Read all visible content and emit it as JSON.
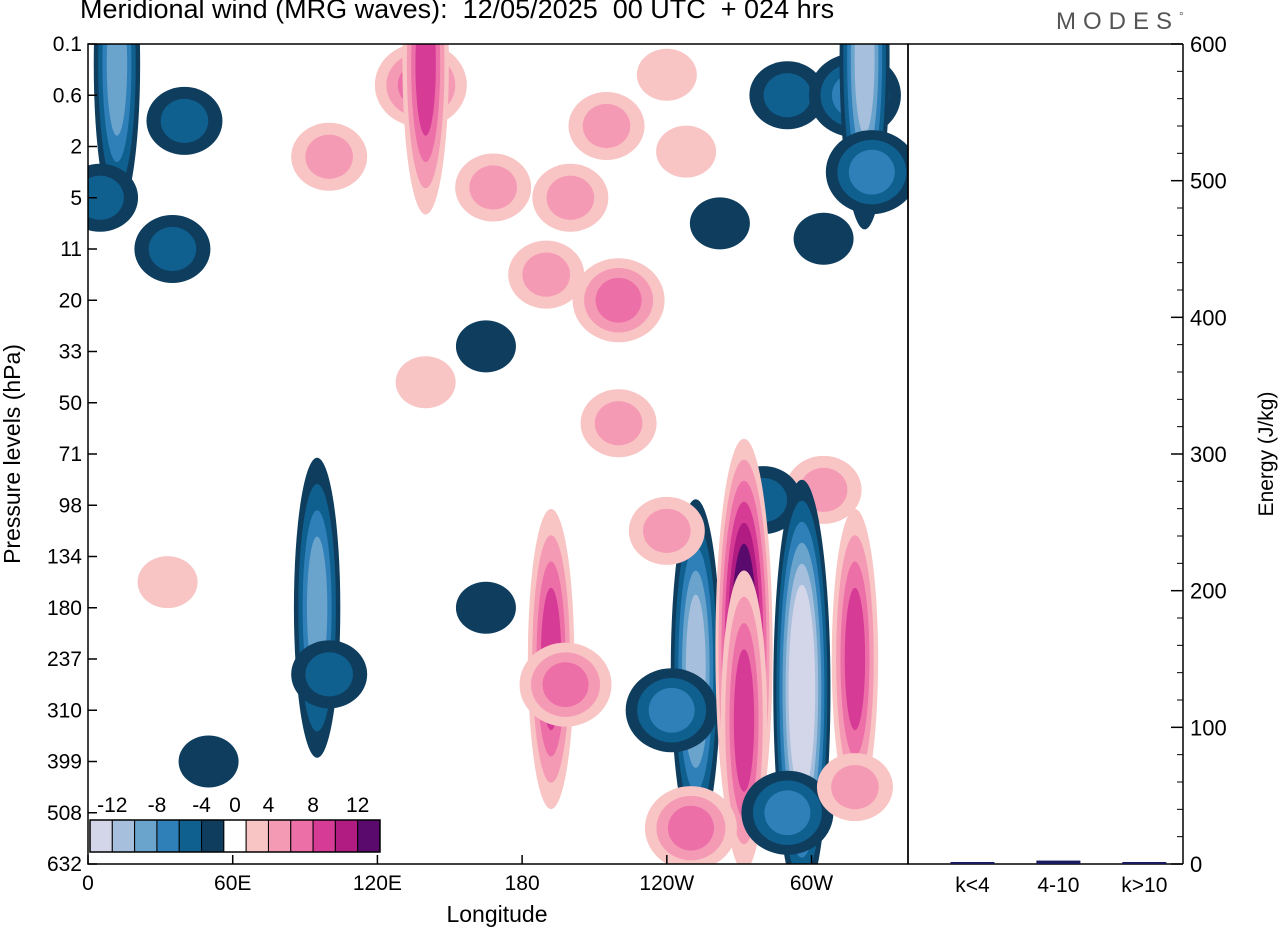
{
  "header": {
    "title": "Meridional wind (MRG waves):  12/05/2025  00 UTC  + 024 hrs",
    "logo": "MODES",
    "logo_mark": "°"
  },
  "colors": {
    "neg": [
      "#0e3d5e",
      "#0f5f8f",
      "#2f7fb8",
      "#6aa3cc",
      "#a5bfdc",
      "#d3d6e8"
    ],
    "pos": [
      "#f8c4c4",
      "#f59ab5",
      "#ec6fa8",
      "#d63b96",
      "#b01c82",
      "#5a0a6c"
    ],
    "bar": "#1a1a5e"
  },
  "chart_data": [
    {
      "type": "heatmap",
      "title": "Meridional wind (MRG waves):  12/05/2025  00 UTC  + 024 hrs",
      "xlabel": "Longitude",
      "ylabel": "Pressure levels (hPa)",
      "x_ticks": [
        "0",
        "60E",
        "120E",
        "180",
        "120W",
        "60W"
      ],
      "x_tick_values": [
        0,
        60,
        120,
        180,
        240,
        300
      ],
      "xlim": [
        0,
        340
      ],
      "y_ticks": [
        "0.1",
        "0.6",
        "2",
        "5",
        "11",
        "20",
        "33",
        "50",
        "71",
        "98",
        "134",
        "180",
        "237",
        "310",
        "399",
        "508",
        "632"
      ],
      "colorbar": {
        "labels": [
          "-12",
          "-8",
          "-4",
          "0",
          "4",
          "8",
          "12"
        ],
        "levels": [
          -14,
          -12,
          -10,
          -8,
          -6,
          -4,
          -2,
          2,
          4,
          6,
          8,
          10,
          12,
          14
        ]
      },
      "features": [
        {
          "lon": 12,
          "lev": 0.4,
          "value": -8
        },
        {
          "lon": 35,
          "lev": 4,
          "value": -4
        },
        {
          "lon": 40,
          "lev": 1.5,
          "value": -4
        },
        {
          "lon": 5,
          "lev": 3,
          "value": -4
        },
        {
          "lon": 100,
          "lev": 2.2,
          "value": 4
        },
        {
          "lon": 138,
          "lev": 0.8,
          "value": 6
        },
        {
          "lon": 140,
          "lev": 0.4,
          "value": 8
        },
        {
          "lon": 168,
          "lev": 2.8,
          "value": 4
        },
        {
          "lon": 200,
          "lev": 3,
          "value": 4
        },
        {
          "lon": 215,
          "lev": 1.6,
          "value": 4
        },
        {
          "lon": 190,
          "lev": 4.5,
          "value": 4
        },
        {
          "lon": 220,
          "lev": 5,
          "value": 6
        },
        {
          "lon": 220,
          "lev": 7.4,
          "value": 4
        },
        {
          "lon": 165,
          "lev": 5.9,
          "value": -2
        },
        {
          "lon": 262,
          "lev": 3.5,
          "value": -2
        },
        {
          "lon": 305,
          "lev": 3.8,
          "value": -2
        },
        {
          "lon": 290,
          "lev": 1.0,
          "value": -4
        },
        {
          "lon": 318,
          "lev": 1.0,
          "value": -6
        },
        {
          "lon": 322,
          "lev": 0.3,
          "value": -10
        },
        {
          "lon": 325,
          "lev": 2.5,
          "value": -6
        },
        {
          "lon": 248,
          "lev": 2.1,
          "value": 2
        },
        {
          "lon": 240,
          "lev": 0.6,
          "value": 2
        },
        {
          "lon": 140,
          "lev": 6.6,
          "value": 2
        },
        {
          "lon": 305,
          "lev": 8.7,
          "value": 4
        },
        {
          "lon": 280,
          "lev": 8.9,
          "value": -4
        },
        {
          "lon": 95,
          "lev": 11,
          "value": -8
        },
        {
          "lon": 100,
          "lev": 12.3,
          "value": -4
        },
        {
          "lon": 33,
          "lev": 10.5,
          "value": 2
        },
        {
          "lon": 192,
          "lev": 12,
          "value": 8
        },
        {
          "lon": 198,
          "lev": 12.5,
          "value": 6
        },
        {
          "lon": 252,
          "lev": 12.2,
          "value": -10
        },
        {
          "lon": 242,
          "lev": 13,
          "value": -6
        },
        {
          "lon": 272,
          "lev": 11.8,
          "value": 14
        },
        {
          "lon": 272,
          "lev": 13.2,
          "value": 8
        },
        {
          "lon": 250,
          "lev": 15.3,
          "value": 6
        },
        {
          "lon": 296,
          "lev": 12.6,
          "value": -14
        },
        {
          "lon": 290,
          "lev": 15,
          "value": -6
        },
        {
          "lon": 318,
          "lev": 12,
          "value": 8
        },
        {
          "lon": 318,
          "lev": 14.5,
          "value": 4
        },
        {
          "lon": 240,
          "lev": 9.5,
          "value": 4
        },
        {
          "lon": 50,
          "lev": 14,
          "value": -2
        },
        {
          "lon": 165,
          "lev": 11,
          "value": -2
        }
      ]
    },
    {
      "type": "bar",
      "ylabel": "Energy (J/kg)",
      "categories": [
        "k<4",
        "4-10",
        "k>10"
      ],
      "values": [
        0.5,
        2.5,
        0.2
      ],
      "ylim": [
        0,
        600
      ],
      "y_ticks": [
        "0",
        "100",
        "200",
        "300",
        "400",
        "500",
        "600"
      ]
    }
  ]
}
